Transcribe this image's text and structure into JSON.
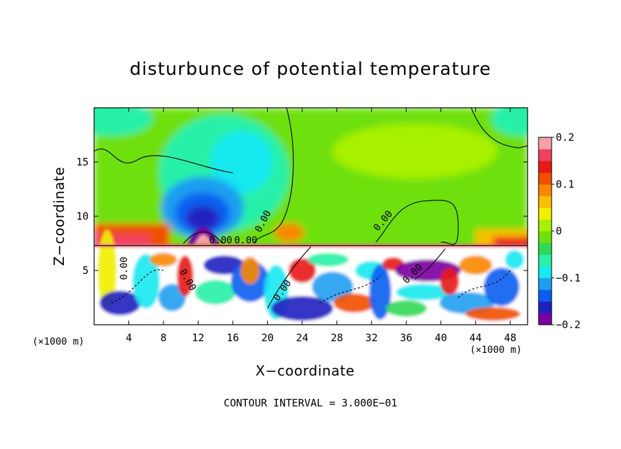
{
  "chart_data": {
    "type": "heatmap",
    "title": "disturbunce of potential temperature",
    "xlabel": "X−coordinate",
    "ylabel": "Z−coordinate",
    "x_unit_left": "(×1000 m)",
    "x_unit_right": "(×1000 m)",
    "footer": "CONTOUR INTERVAL = 3.000E−01",
    "xlim": [
      0,
      50
    ],
    "ylim": [
      0,
      20
    ],
    "x_ticks": [
      4,
      8,
      12,
      16,
      20,
      24,
      28,
      32,
      36,
      40,
      44,
      48
    ],
    "x_tick_labels": [
      "4",
      "8",
      "12",
      "16",
      "20",
      "24",
      "28",
      "32",
      "36",
      "40",
      "44",
      "48"
    ],
    "y_ticks": [
      5,
      10,
      15
    ],
    "y_tick_labels": [
      "5",
      "10",
      "15"
    ],
    "colorbar": {
      "range": [
        -0.2,
        0.2
      ],
      "tick_values": [
        0.2,
        0.1,
        0,
        -0.1,
        -0.2
      ],
      "tick_labels": [
        "0.2",
        "0.1",
        "0",
        "−0.1",
        "−0.2"
      ],
      "colors": [
        "#7a00a0",
        "#2020c0",
        "#0a5ef0",
        "#1e9ef0",
        "#18e8f0",
        "#28f0a8",
        "#30d858",
        "#6ee010",
        "#a8f000",
        "#f0f000",
        "#f8c000",
        "#f88800",
        "#f05000",
        "#e81818",
        "#f04060",
        "#f8a0a8"
      ]
    },
    "contour_labels": [
      "0.00",
      "0.00",
      "0.00",
      "0.00",
      "0.00",
      "0.00",
      "0.00",
      "0.00"
    ],
    "field_features": {
      "inversion_height": 7.3,
      "cold_cores": [
        [
          12.5,
          10.5
        ],
        [
          38.5,
          5
        ]
      ],
      "warm_layer": "z 7–9 near x 0–7 and 44–50"
    }
  }
}
